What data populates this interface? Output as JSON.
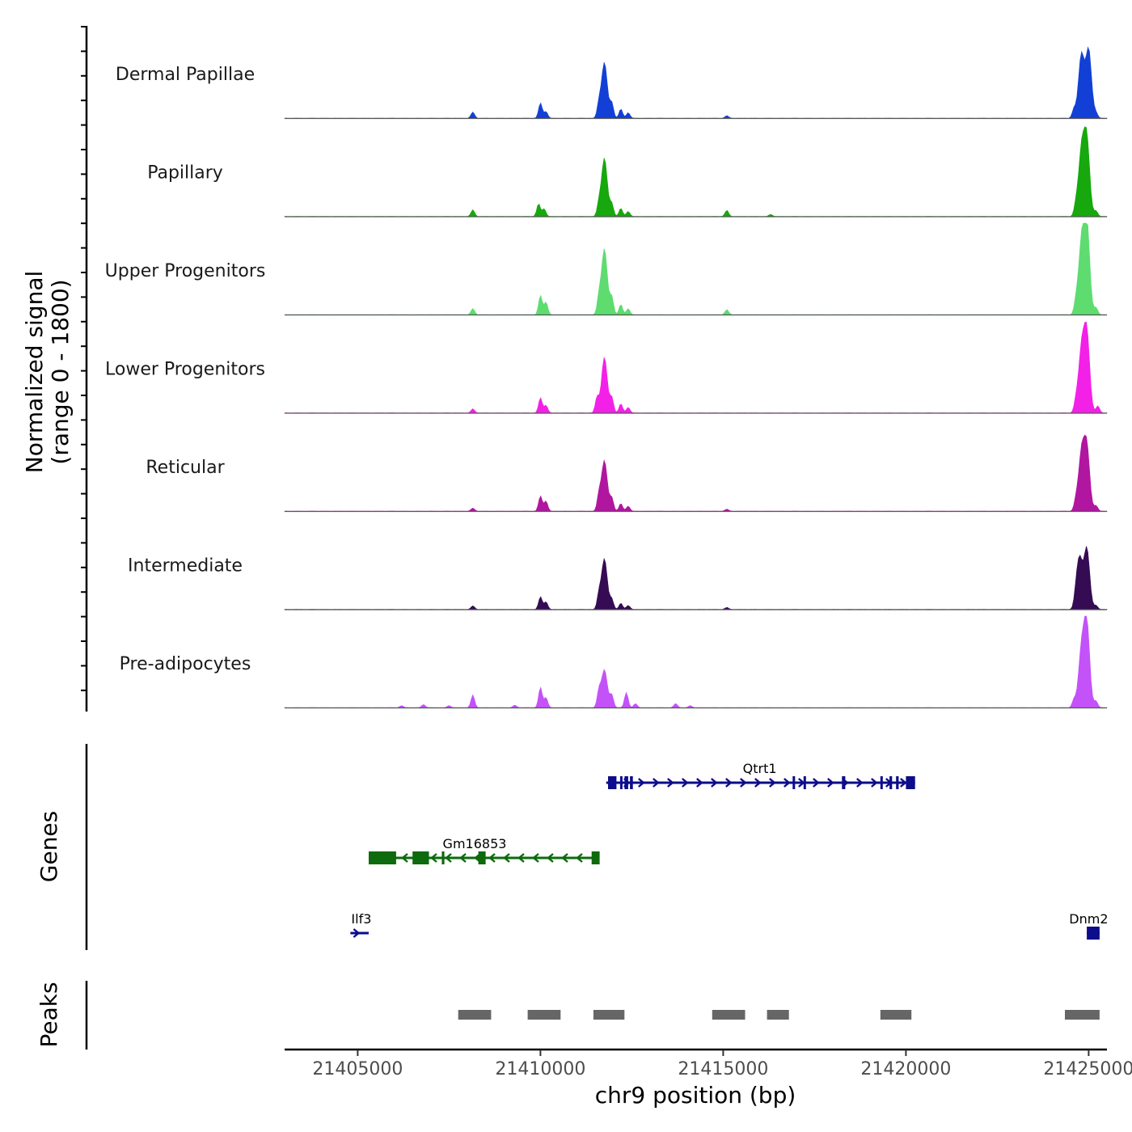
{
  "chart_data": {
    "type": "genome-coverage",
    "chromosome": "chr9",
    "x_range": [
      21403000,
      21425500
    ],
    "x_ticks": [
      21405000,
      21410000,
      21415000,
      21420000,
      21425000
    ],
    "x_tick_labels": [
      "21405000",
      "21410000",
      "21415000",
      "21420000",
      "21425000"
    ],
    "xlabel": "chr9 position (bp)",
    "ylabel_line1": "Normalized signal",
    "ylabel_line2": "(range 0 - 1800)",
    "y_range": [
      0,
      1800
    ],
    "genes_label": "Genes",
    "peaks_label": "Peaks",
    "tracks": [
      {
        "name": "Dermal Papillae",
        "color": "#1240d6",
        "peaks": [
          [
            21408150,
            120
          ],
          [
            21410000,
            300
          ],
          [
            21410150,
            130
          ],
          [
            21411750,
            1100
          ],
          [
            21411600,
            250
          ],
          [
            21411950,
            300
          ],
          [
            21412200,
            180
          ],
          [
            21412400,
            110
          ],
          [
            21415100,
            50
          ],
          [
            21424800,
            1250
          ],
          [
            21425000,
            1350
          ],
          [
            21424600,
            180
          ],
          [
            21425200,
            100
          ]
        ]
      },
      {
        "name": "Papillary",
        "color": "#16a80c",
        "peaks": [
          [
            21408150,
            130
          ],
          [
            21409950,
            250
          ],
          [
            21410100,
            150
          ],
          [
            21411750,
            1150
          ],
          [
            21411600,
            220
          ],
          [
            21411950,
            250
          ],
          [
            21412200,
            160
          ],
          [
            21412400,
            100
          ],
          [
            21415100,
            120
          ],
          [
            21416300,
            40
          ],
          [
            21424800,
            1250
          ],
          [
            21424950,
            1500
          ],
          [
            21424650,
            200
          ],
          [
            21425200,
            110
          ]
        ]
      },
      {
        "name": "Upper Progenitors",
        "color": "#5edc70",
        "peaks": [
          [
            21408150,
            120
          ],
          [
            21410000,
            380
          ],
          [
            21410150,
            250
          ],
          [
            21411750,
            1300
          ],
          [
            21411600,
            300
          ],
          [
            21411950,
            350
          ],
          [
            21412200,
            200
          ],
          [
            21412400,
            120
          ],
          [
            21415100,
            100
          ],
          [
            21424800,
            1350
          ],
          [
            21424950,
            1800
          ],
          [
            21424650,
            220
          ],
          [
            21425200,
            140
          ]
        ]
      },
      {
        "name": "Lower Progenitors",
        "color": "#f320e8",
        "peaks": [
          [
            21408150,
            80
          ],
          [
            21410000,
            300
          ],
          [
            21410150,
            150
          ],
          [
            21411750,
            1100
          ],
          [
            21411550,
            300
          ],
          [
            21411950,
            300
          ],
          [
            21412200,
            180
          ],
          [
            21412400,
            110
          ],
          [
            21424800,
            1200
          ],
          [
            21424950,
            1550
          ],
          [
            21424650,
            200
          ],
          [
            21425250,
            140
          ]
        ]
      },
      {
        "name": "Reticular",
        "color": "#b0169f",
        "peaks": [
          [
            21408150,
            60
          ],
          [
            21410000,
            300
          ],
          [
            21410150,
            200
          ],
          [
            21411750,
            1000
          ],
          [
            21411600,
            280
          ],
          [
            21411950,
            260
          ],
          [
            21412200,
            150
          ],
          [
            21412400,
            100
          ],
          [
            21415100,
            40
          ],
          [
            21424800,
            1100
          ],
          [
            21424950,
            1250
          ],
          [
            21424650,
            180
          ],
          [
            21425200,
            110
          ]
        ]
      },
      {
        "name": "Intermediate",
        "color": "#350b54",
        "peaks": [
          [
            21408150,
            70
          ],
          [
            21410000,
            250
          ],
          [
            21410150,
            150
          ],
          [
            21411750,
            1000
          ],
          [
            21411600,
            260
          ],
          [
            21411950,
            200
          ],
          [
            21412200,
            120
          ],
          [
            21412400,
            80
          ],
          [
            21415100,
            40
          ],
          [
            21424750,
            1000
          ],
          [
            21424950,
            1200
          ],
          [
            21424650,
            160
          ],
          [
            21425200,
            80
          ]
        ]
      },
      {
        "name": "Pre-adipocytes",
        "color": "#c352f8",
        "peaks": [
          [
            21406200,
            40
          ],
          [
            21406800,
            60
          ],
          [
            21407500,
            40
          ],
          [
            21408150,
            250
          ],
          [
            21409300,
            50
          ],
          [
            21410000,
            400
          ],
          [
            21410150,
            200
          ],
          [
            21411750,
            750
          ],
          [
            21411600,
            300
          ],
          [
            21411950,
            250
          ],
          [
            21412350,
            300
          ],
          [
            21412600,
            80
          ],
          [
            21413700,
            80
          ],
          [
            21414100,
            40
          ],
          [
            21424800,
            1100
          ],
          [
            21424950,
            1650
          ],
          [
            21424600,
            160
          ],
          [
            21425200,
            130
          ]
        ]
      }
    ],
    "genes": [
      {
        "name": "Qtrt1",
        "strand": "+",
        "color": "#0c0c8c",
        "row": 0,
        "start": 21411800,
        "end": 21420250,
        "exons": [
          [
            21411850,
            21412080
          ],
          [
            21412180,
            21412230
          ],
          [
            21412300,
            21412400
          ],
          [
            21412450,
            21412530
          ],
          [
            21416900,
            21416960
          ],
          [
            21417200,
            21417260
          ],
          [
            21418250,
            21418340
          ],
          [
            21419300,
            21419350
          ],
          [
            21419550,
            21419620
          ],
          [
            21419730,
            21419800
          ],
          [
            21420000,
            21420250
          ]
        ],
        "label_x": 21416000
      },
      {
        "name": "Gm16853",
        "strand": "-",
        "color": "#0d6a0d",
        "row": 1,
        "start": 21405300,
        "end": 21411600,
        "exons": [
          [
            21405300,
            21406050
          ],
          [
            21406500,
            21406950
          ],
          [
            21407300,
            21407370
          ],
          [
            21408300,
            21408500
          ],
          [
            21411400,
            21411620
          ]
        ],
        "label_x": 21408200
      },
      {
        "name": "Ilf3",
        "strand": "+",
        "color": "#0c0c8c",
        "row": 2,
        "start": 21404800,
        "end": 21405300,
        "exons": [],
        "label_x": 21405100
      },
      {
        "name": "Dnm2",
        "strand": "+",
        "color": "#0c0c8c",
        "row": 2,
        "start": 21424950,
        "end": 21425300,
        "exons": [
          [
            21424950,
            21425300
          ]
        ],
        "label_x": 21425000
      }
    ],
    "peak_regions": [
      [
        21407750,
        21408650
      ],
      [
        21409650,
        21410550
      ],
      [
        21411450,
        21412300
      ],
      [
        21414700,
        21415600
      ],
      [
        21416200,
        21416800
      ],
      [
        21419300,
        21420150
      ],
      [
        21424350,
        21425300
      ]
    ]
  }
}
